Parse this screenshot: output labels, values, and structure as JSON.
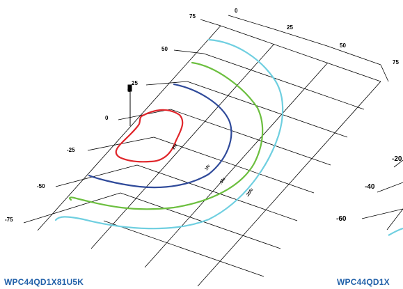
{
  "left_panel": {
    "caption": "WPC44QD1X81U5K",
    "pole_label": "0",
    "x_ticks": [
      "0",
      "25",
      "50",
      "75"
    ],
    "y_ticks": [
      "75",
      "50",
      "25",
      "0",
      "-25",
      "-50",
      "-75"
    ],
    "contour_labels": [
      "2fc",
      "1fc",
      ".5fc",
      ".25fc"
    ],
    "contour_colors": {
      "2fc": "#e0262b",
      "1fc": "#2f4a9a",
      ".5fc": "#6cbf3f",
      ".25fc": "#6fcfe0"
    }
  },
  "right_panel": {
    "caption": "WPC44QD1X",
    "y_ticks": [
      "-20",
      "-40",
      "-60"
    ]
  },
  "colors": {
    "caption": "#1f5fa8",
    "grid": "#000000"
  }
}
